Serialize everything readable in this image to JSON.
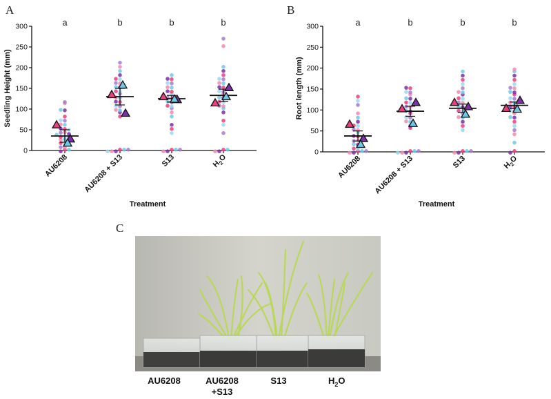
{
  "panel_c": {
    "letter": "C",
    "photo_description": "Rice seedlings in four clear plastic boxes of soil",
    "labels": [
      {
        "line1": "AU6208",
        "line2": ""
      },
      {
        "line1": "AU6208",
        "line2": "+S13"
      },
      {
        "line1": "S13",
        "line2": ""
      },
      {
        "line1": "H",
        "sub": "2",
        "line1b": "O",
        "line2": ""
      }
    ]
  },
  "chart_data": [
    {
      "panel": "A",
      "type": "scatter",
      "xlabel": "Treatment",
      "ylabel": "Seedling Height (mm)",
      "ylim": [
        0,
        300
      ],
      "yticks": [
        0,
        50,
        100,
        150,
        200,
        250,
        300
      ],
      "categories": [
        "AU6208",
        "AU6208 + S13",
        "S13",
        "H2O"
      ],
      "significance": [
        "a",
        "b",
        "b",
        "b"
      ],
      "means": [
        35,
        130,
        125,
        133
      ],
      "error": [
        15,
        20,
        8,
        15
      ],
      "replicate_means": [
        {
          "name": "replicate-1",
          "color": "#e8417f",
          "values": [
            62,
            135,
            130,
            115
          ]
        },
        {
          "name": "replicate-2",
          "color": "#7c2fa8",
          "values": [
            28,
            90,
            123,
            152
          ]
        },
        {
          "name": "replicate-3",
          "color": "#6fc9e6",
          "values": [
            18,
            158,
            124,
            130
          ]
        }
      ],
      "points": [
        [
          5,
          10,
          15,
          20,
          22,
          25,
          28,
          30,
          32,
          35,
          38,
          40,
          42,
          45,
          48,
          50,
          55,
          60,
          65,
          70,
          75,
          80,
          95,
          100,
          112,
          115,
          0,
          0,
          0
        ],
        [
          0,
          0,
          0,
          0,
          0,
          0,
          80,
          90,
          95,
          100,
          105,
          110,
          115,
          120,
          125,
          130,
          135,
          140,
          145,
          150,
          155,
          160,
          165,
          170,
          175,
          180,
          190,
          200,
          210
        ],
        [
          0,
          0,
          0,
          0,
          0,
          40,
          50,
          60,
          80,
          90,
          100,
          105,
          110,
          115,
          120,
          125,
          130,
          135,
          140,
          145,
          150,
          155,
          160,
          165,
          170,
          175,
          180
        ],
        [
          0,
          0,
          0,
          0,
          40,
          60,
          70,
          90,
          100,
          105,
          110,
          115,
          120,
          125,
          130,
          135,
          140,
          145,
          150,
          155,
          160,
          165,
          170,
          175,
          180,
          190,
          200,
          250,
          268
        ]
      ]
    },
    {
      "panel": "B",
      "type": "scatter",
      "xlabel": "Treatment",
      "ylabel": "Root length (mm)",
      "ylim": [
        0,
        300
      ],
      "yticks": [
        0,
        50,
        100,
        150,
        200,
        250,
        300
      ],
      "categories": [
        "AU6208",
        "AU6208 + S13",
        "S13",
        "H2O"
      ],
      "significance": [
        "a",
        "b",
        "b",
        "b"
      ],
      "means": [
        38,
        97,
        104,
        111
      ],
      "error": [
        12,
        12,
        10,
        8
      ],
      "replicate_means": [
        {
          "name": "replicate-1",
          "color": "#e8417f",
          "values": [
            66,
            103,
            118,
            104
          ]
        },
        {
          "name": "replicate-2",
          "color": "#7c2fa8",
          "values": [
            32,
            118,
            108,
            123
          ]
        },
        {
          "name": "replicate-3",
          "color": "#6fc9e6",
          "values": [
            18,
            68,
            90,
            102
          ]
        }
      ],
      "points": [
        [
          0,
          0,
          0,
          0,
          0,
          5,
          10,
          15,
          20,
          25,
          28,
          30,
          35,
          40,
          45,
          50,
          55,
          60,
          65,
          70,
          80,
          90,
          110,
          120,
          130
        ],
        [
          0,
          0,
          0,
          0,
          0,
          0,
          55,
          60,
          70,
          75,
          80,
          85,
          90,
          95,
          100,
          105,
          110,
          115,
          120,
          125,
          130,
          135,
          140,
          145,
          150,
          155
        ],
        [
          0,
          0,
          0,
          0,
          0,
          50,
          60,
          70,
          80,
          85,
          90,
          95,
          100,
          105,
          110,
          115,
          120,
          125,
          130,
          135,
          140,
          145,
          150,
          160,
          170,
          180,
          190
        ],
        [
          0,
          0,
          20,
          40,
          50,
          60,
          70,
          80,
          85,
          90,
          95,
          100,
          105,
          110,
          115,
          120,
          125,
          130,
          135,
          140,
          145,
          150,
          155,
          160,
          170,
          180,
          190,
          195
        ]
      ]
    }
  ]
}
